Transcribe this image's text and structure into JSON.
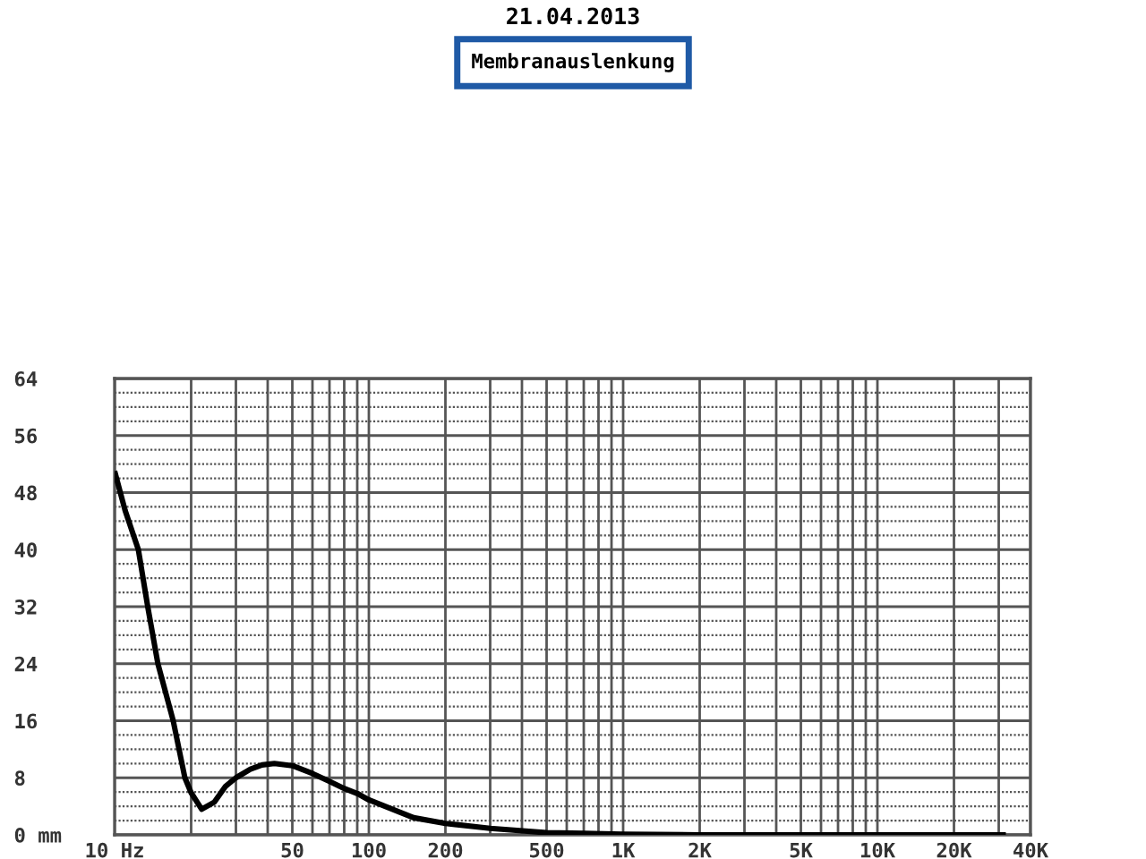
{
  "chart_data": {
    "type": "line",
    "title": "21.04.2013",
    "subtitle": "Membranauslenkung",
    "x": [
      10,
      11,
      12.4,
      13.5,
      14.8,
      17,
      18.9,
      20,
      22,
      24.7,
      27.3,
      30,
      34.2,
      38,
      42.5,
      50,
      60,
      70,
      80,
      90,
      100,
      150,
      200,
      300,
      500,
      700,
      1000,
      2000,
      5000,
      10000,
      20000,
      32000
    ],
    "series": [
      {
        "color": "#000000",
        "values": [
          51,
          45.5,
          40,
          32,
          24,
          16,
          8,
          5.9,
          3.6,
          4.6,
          6.8,
          8,
          9.2,
          9.8,
          10,
          9.7,
          8.6,
          7.5,
          6.5,
          5.8,
          4.9,
          2.4,
          1.6,
          0.9,
          0.3,
          0.2,
          0.1,
          0,
          0,
          0,
          0,
          0
        ]
      }
    ],
    "log": "x",
    "xlim": [
      10,
      40000
    ],
    "ylim": [
      0,
      64
    ],
    "xticks": [
      {
        "value": 10,
        "label": "10 Hz"
      },
      {
        "value": 20,
        "label": null
      },
      {
        "value": 30,
        "label": null
      },
      {
        "value": 40,
        "label": null
      },
      50,
      {
        "value": 60,
        "label": null
      },
      {
        "value": 70,
        "label": null
      },
      {
        "value": 80,
        "label": null
      },
      {
        "value": 90,
        "label": null
      },
      100,
      200,
      {
        "value": 300,
        "label": null
      },
      {
        "value": 400,
        "label": null
      },
      500,
      {
        "value": 600,
        "label": null
      },
      {
        "value": 700,
        "label": null
      },
      {
        "value": 800,
        "label": null
      },
      {
        "value": 900,
        "label": null
      },
      {
        "value": 1000,
        "label": "1K"
      },
      {
        "value": 2000,
        "label": "2K"
      },
      {
        "value": 3000,
        "label": null
      },
      {
        "value": 4000,
        "label": null
      },
      {
        "value": 5000,
        "label": "5K"
      },
      {
        "value": 6000,
        "label": null
      },
      {
        "value": 7000,
        "label": null
      },
      {
        "value": 8000,
        "label": null
      },
      {
        "value": 9000,
        "label": null
      },
      {
        "value": 10000,
        "label": "10K"
      },
      {
        "value": 20000,
        "label": "20K"
      },
      {
        "value": 30000,
        "label": null
      },
      {
        "value": 40000,
        "label": "40K"
      }
    ],
    "yticks": [
      {
        "value": 0,
        "label": "0 mm"
      },
      {
        "value": 2,
        "label": null
      },
      {
        "value": 4,
        "label": null
      },
      {
        "value": 6,
        "label": null
      },
      8,
      {
        "value": 10,
        "label": null
      },
      {
        "value": 12,
        "label": null
      },
      {
        "value": 14,
        "label": null
      },
      16,
      {
        "value": 18,
        "label": null
      },
      {
        "value": 20,
        "label": null
      },
      {
        "value": 22,
        "label": null
      },
      24,
      {
        "value": 26,
        "label": null
      },
      {
        "value": 28,
        "label": null
      },
      {
        "value": 30,
        "label": null
      },
      32,
      {
        "value": 34,
        "label": null
      },
      {
        "value": 36,
        "label": null
      },
      {
        "value": 38,
        "label": null
      },
      40,
      {
        "value": 42,
        "label": null
      },
      {
        "value": 44,
        "label": null
      },
      {
        "value": 46,
        "label": null
      },
      48,
      {
        "value": 50,
        "label": null
      },
      {
        "value": 52,
        "label": null
      },
      {
        "value": 54,
        "label": null
      },
      56,
      {
        "value": 58,
        "label": null
      },
      {
        "value": 60,
        "label": null
      },
      {
        "value": 62,
        "label": null
      },
      64
    ],
    "grid": true,
    "line_style": "solid"
  }
}
